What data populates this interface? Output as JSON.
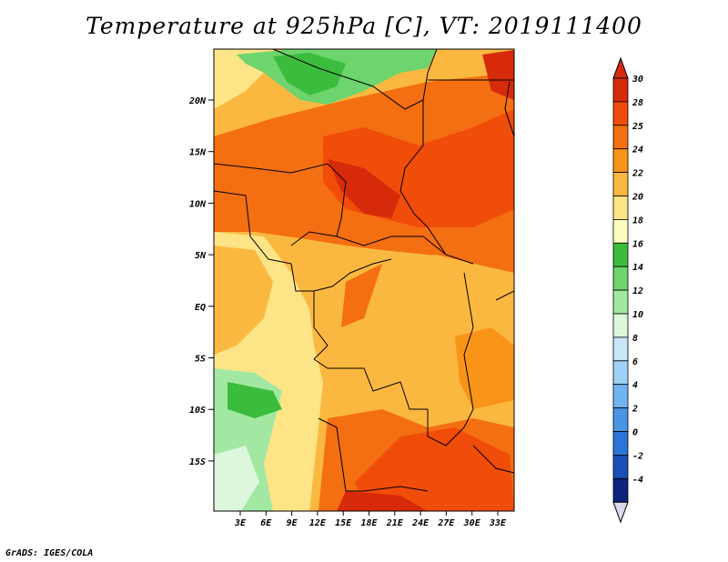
{
  "title": "Temperature at 925hPa [C], VT: 2019111400",
  "footer": "GrADS: IGES/COLA",
  "map": {
    "lat_labels": [
      "20N",
      "15N",
      "10N",
      "5N",
      "EQ",
      "5S",
      "10S",
      "15S"
    ],
    "lon_labels": [
      "3E",
      "6E",
      "9E",
      "12E",
      "15E",
      "18E",
      "21E",
      "24E",
      "27E",
      "30E",
      "33E"
    ]
  },
  "colorbar": {
    "labels": [
      "30",
      "28",
      "25",
      "24",
      "22",
      "20",
      "18",
      "16",
      "14",
      "12",
      "10",
      "8",
      "6",
      "4",
      "2",
      "0",
      "-2",
      "-4"
    ],
    "colors": [
      "#d62a0a",
      "#f04c0a",
      "#f46e12",
      "#f99419",
      "#fbb840",
      "#fde486",
      "#fcfcc0",
      "#3cbc3c",
      "#6ed46e",
      "#a2e8a2",
      "#dcf7dc",
      "#c8e6f8",
      "#9ed1f5",
      "#70b5ef",
      "#4a94e4",
      "#2c74d7",
      "#1b4fb8",
      "#0c247c"
    ],
    "top_arrow_color": "#d62a0a",
    "bottom_arrow_color": "#d9d9ef"
  }
}
